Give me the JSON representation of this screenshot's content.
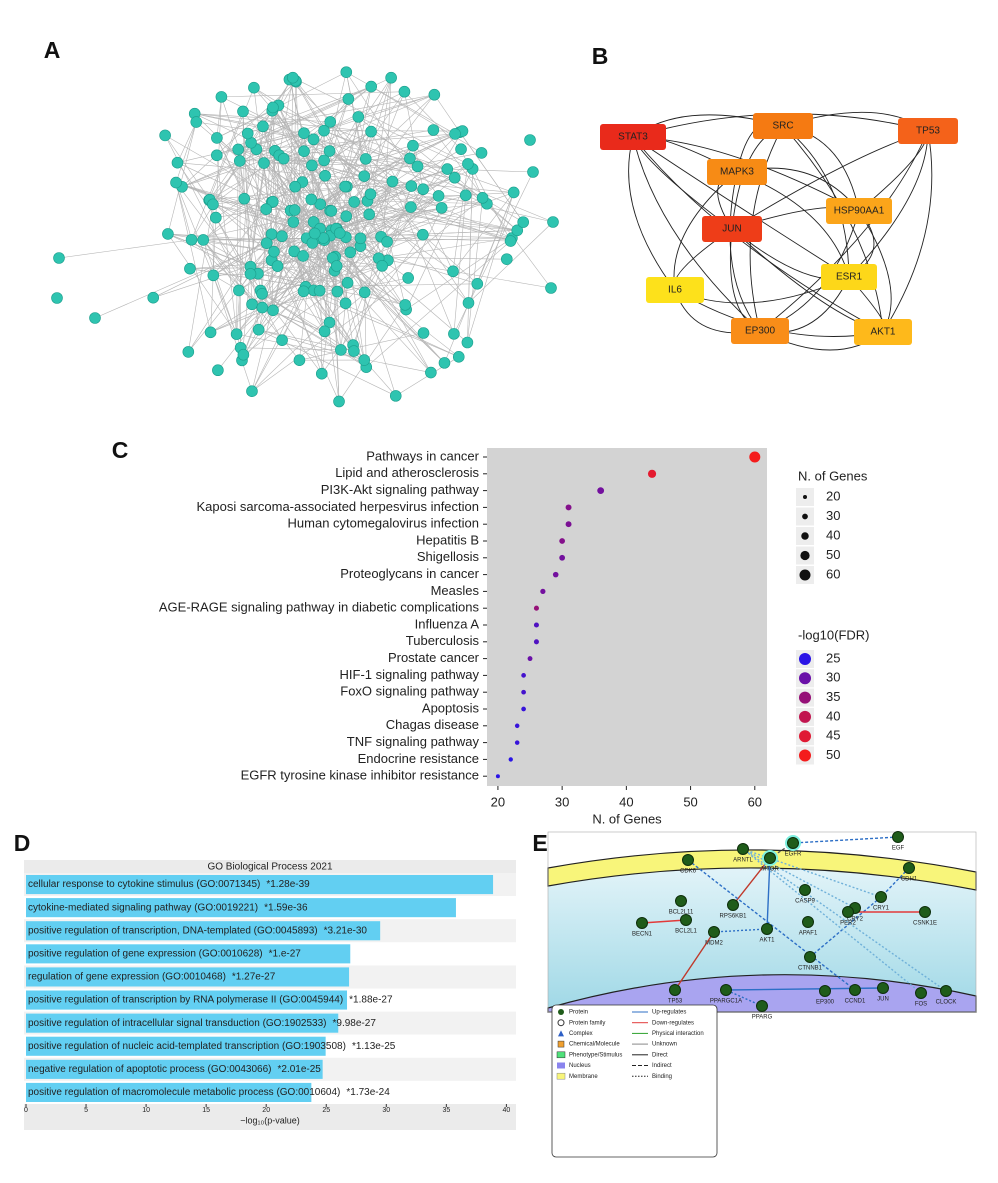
{
  "panel_labels": [
    "A",
    "B",
    "C",
    "D",
    "E"
  ],
  "network_b": {
    "nodes": [
      {
        "label": "STAT3",
        "color": "#e92a1b"
      },
      {
        "label": "SRC",
        "color": "#f57a12"
      },
      {
        "label": "TP53",
        "color": "#f4621a"
      },
      {
        "label": "MAPK3",
        "color": "#f78b15"
      },
      {
        "label": "HSP90AA1",
        "color": "#fba51a"
      },
      {
        "label": "JUN",
        "color": "#ee3d18"
      },
      {
        "label": "ESR1",
        "color": "#fdd719"
      },
      {
        "label": "IL6",
        "color": "#fde11b"
      },
      {
        "label": "EP300",
        "color": "#f98d18"
      },
      {
        "label": "AKT1",
        "color": "#feb91b"
      }
    ]
  },
  "chart_data": [
    {
      "type": "scatter",
      "categories": [
        "Pathways in cancer",
        "Lipid and atherosclerosis",
        "PI3K-Akt signaling pathway",
        "Kaposi sarcoma-associated herpesvirus infection",
        "Human cytomegalovirus infection",
        "Hepatitis B",
        "Shigellosis",
        "Proteoglycans in cancer",
        "Measles",
        "AGE-RAGE signaling pathway in diabetic complications",
        "Influenza A",
        "Tuberculosis",
        "Prostate cancer",
        "HIF-1 signaling pathway",
        "FoxO signaling pathway",
        "Apoptosis",
        "Chagas disease",
        "TNF signaling pathway",
        "Endocrine resistance",
        "EGFR tyrosine kinase inhibitor resistance"
      ],
      "values": [
        60,
        44,
        36,
        31,
        31,
        30,
        30,
        29,
        27,
        26,
        26,
        26,
        25,
        24,
        24,
        24,
        23,
        23,
        22,
        20
      ],
      "neg_log10_fdr": [
        50,
        46,
        31,
        33,
        32,
        33,
        31,
        31,
        31,
        35,
        28,
        28,
        30,
        27,
        27,
        26,
        26,
        26,
        25,
        24
      ],
      "xlabel": "N. of Genes",
      "xlim": [
        18.3,
        61.9
      ],
      "xticks": [
        20,
        30,
        40,
        50,
        60
      ],
      "size_legend": {
        "title": "N. of Genes",
        "values": [
          20,
          30,
          40,
          50,
          60
        ]
      },
      "color_legend": {
        "title": "-log10(FDR)",
        "values": [
          25,
          30,
          35,
          40,
          45,
          50
        ],
        "colors": [
          "#2a14e6",
          "#6a10a8",
          "#951077",
          "#c1154f",
          "#e01a34",
          "#f41c1c"
        ]
      },
      "background": "#d3d3d3"
    },
    {
      "type": "bar",
      "orientation": "horizontal",
      "title": "GO Biological Process 2021",
      "categories": [
        "cellular response to cytokine stimulus (GO:0071345)",
        "cytokine-mediated signaling pathway (GO:0019221)",
        "positive regulation of transcription, DNA-templated (GO:0045893)",
        "positive regulation of gene expression (GO:0010628)",
        "regulation of gene expression (GO:0010468)",
        "positive regulation of transcription by RNA polymerase II (GO:0045944)",
        "positive regulation of intracellular signal transduction (GO:1902533)",
        "positive regulation of nucleic acid-templated transcription (GO:1903508)",
        "negative regulation of apoptotic process (GO:0043066)",
        "positive regulation of macromolecule metabolic process (GO:0010604)"
      ],
      "values": [
        38.89,
        35.8,
        29.49,
        27,
        26.9,
        26.73,
        26,
        24.95,
        24.7,
        23.76
      ],
      "p_labels": [
        "*1.28e-39",
        "*1.59e-36",
        "*3.21e-30",
        "*1.e-27",
        "*1.27e-27",
        "*1.88e-27",
        "*9.98e-27",
        "*1.13e-25",
        "*2.01e-25",
        "*1.73e-24"
      ],
      "xlabel": "−log₁₀(p-value)",
      "xlim": [
        0,
        40.8
      ],
      "xticks": [
        0,
        5,
        10,
        15,
        20,
        25,
        30,
        35,
        40
      ],
      "color": "#62cff2"
    }
  ],
  "pathway_e": {
    "nodes": [
      "EGFR",
      "EGF",
      "ARNTL",
      "CDH1",
      "MTOR",
      "CDK6",
      "RPS6KB1",
      "CASP9",
      "CRY2",
      "CRY1",
      "PER2",
      "CSNK1E",
      "APAF1",
      "AKT1",
      "BCL2L11",
      "BCL2L1",
      "BECN1",
      "MDM2",
      "CTNNB1",
      "TP53",
      "PPARGC1A",
      "PPARG",
      "EP300",
      "CCND1",
      "JUN",
      "FOS",
      "CLOCK"
    ],
    "legend": {
      "node_types": [
        "Protein",
        "Protein family",
        "Complex",
        "Chemical/Molecule",
        "Phenotype/Stimulus",
        "Nucleus",
        "Membrane"
      ],
      "edge_types": [
        "Up-regulates",
        "Down-regulates",
        "Physical interaction",
        "Unknown",
        "Direct",
        "Indirect",
        "Binding"
      ]
    }
  }
}
